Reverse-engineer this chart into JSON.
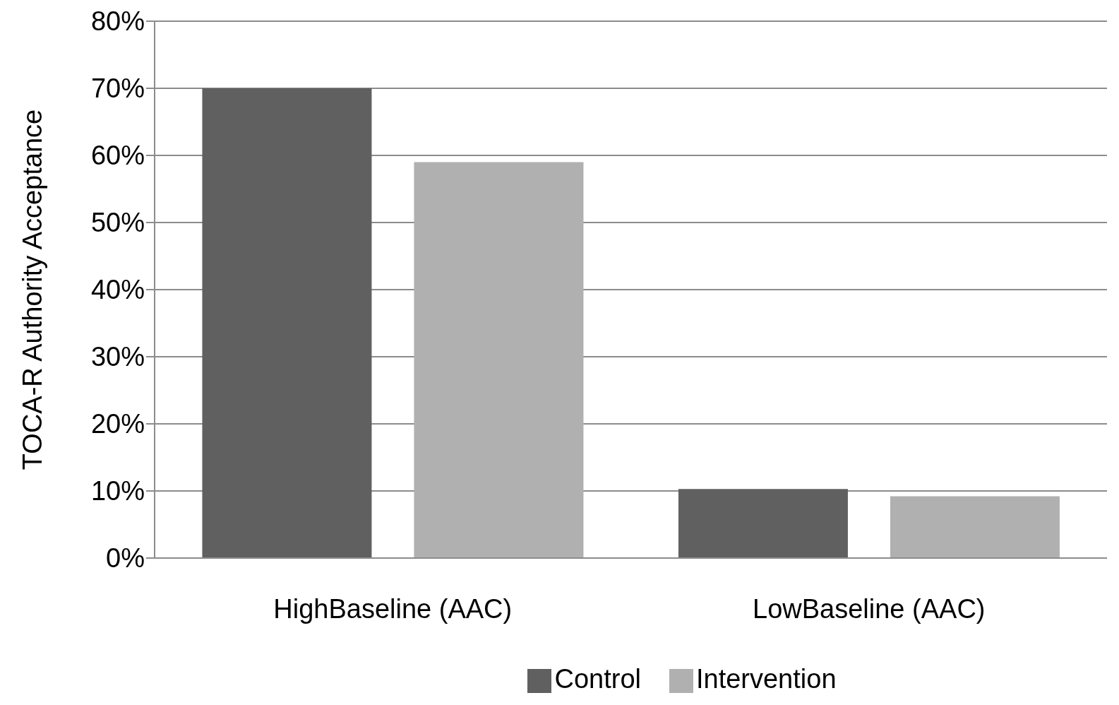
{
  "chart_data": {
    "type": "bar",
    "ylabel": "TOCA-R Authority Acceptance",
    "categories": [
      "HighBaseline (AAC)",
      "LowBaseline (AAC)"
    ],
    "series": [
      {
        "name": "Control",
        "color": "#606060",
        "values": [
          70,
          10.3
        ]
      },
      {
        "name": "Intervention",
        "color": "#b0b0b0",
        "values": [
          59,
          9.2
        ]
      }
    ],
    "ylim": [
      0,
      80
    ],
    "yticks": [
      {
        "value": 0,
        "label": "0%"
      },
      {
        "value": 10,
        "label": "10%"
      },
      {
        "value": 20,
        "label": "20%"
      },
      {
        "value": 30,
        "label": "30%"
      },
      {
        "value": 40,
        "label": "40%"
      },
      {
        "value": 50,
        "label": "50%"
      },
      {
        "value": 60,
        "label": "60%"
      },
      {
        "value": 70,
        "label": "70%"
      },
      {
        "value": 80,
        "label": "80%"
      }
    ],
    "grid": "y",
    "legend": "bottom"
  }
}
